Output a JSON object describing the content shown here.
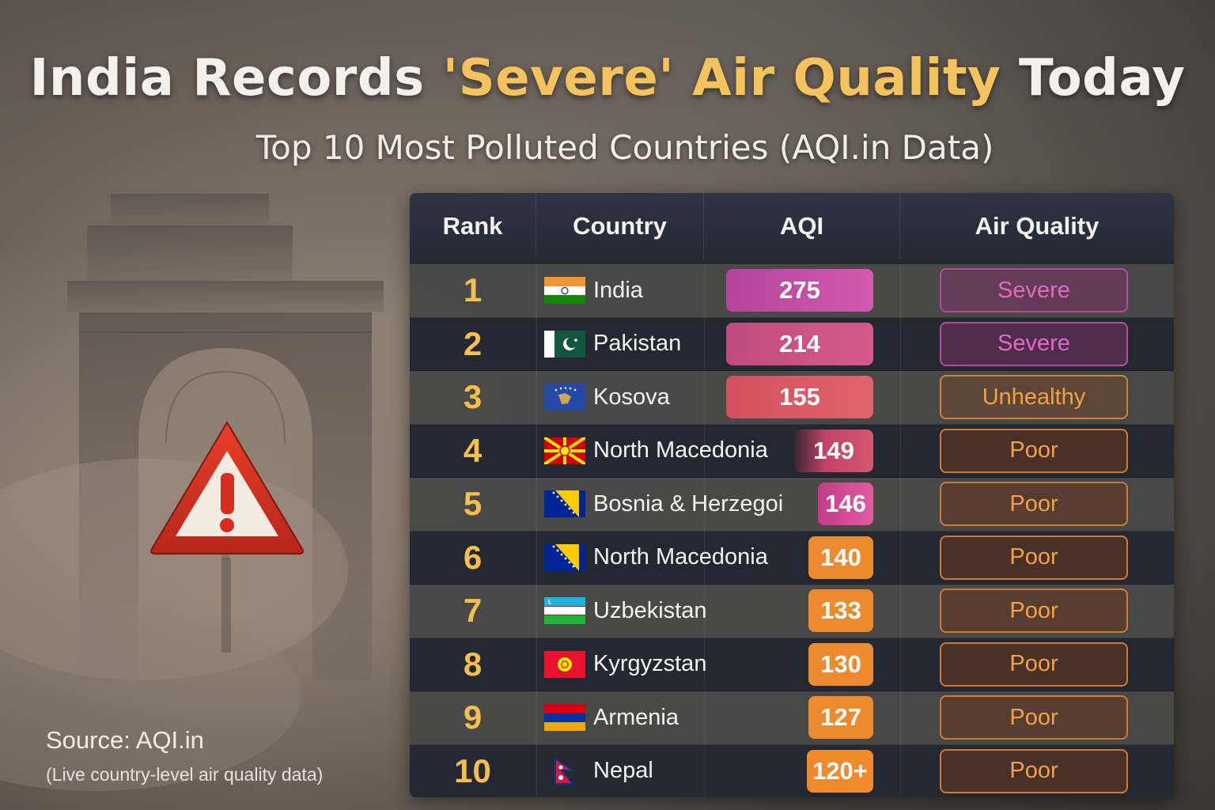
{
  "title": {
    "part1": "India Records ",
    "highlight": "'Severe' Air Quality",
    "part2": " Today"
  },
  "subtitle": "Top 10 Most Polluted Countries (AQI.in Data)",
  "table": {
    "headers": [
      "Rank",
      "Country",
      "AQI",
      "Air Quality"
    ],
    "rows": [
      {
        "rank": "1",
        "country": "India",
        "flag": "india-flag-icon",
        "aqi": "275",
        "quality": "Severe"
      },
      {
        "rank": "2",
        "country": "Pakistan",
        "flag": "pakistan-flag-icon",
        "aqi": "214",
        "quality": "Severe"
      },
      {
        "rank": "3",
        "country": "Kosova",
        "flag": "kosovo-flag-icon",
        "aqi": "155",
        "quality": "Unhealthy"
      },
      {
        "rank": "4",
        "country": "North Macedonia",
        "flag": "north-macedonia-flag-icon",
        "aqi": "149",
        "quality": "Poor"
      },
      {
        "rank": "5",
        "country": "Bosnia & Herzegoi",
        "flag": "bosnia-flag-icon",
        "aqi": "146",
        "quality": "Poor"
      },
      {
        "rank": "6",
        "country": "North Macedonia",
        "flag": "bosnia-flag-icon",
        "aqi": "140",
        "quality": "Poor"
      },
      {
        "rank": "7",
        "country": "Uzbekistan",
        "flag": "uzbekistan-flag-icon",
        "aqi": "133",
        "quality": "Poor"
      },
      {
        "rank": "8",
        "country": "Kyrgyzstan",
        "flag": "kyrgyzstan-flag-icon",
        "aqi": "130",
        "quality": "Poor"
      },
      {
        "rank": "9",
        "country": "Armenia",
        "flag": "armenia-flag-icon",
        "aqi": "127",
        "quality": "Poor"
      },
      {
        "rank": "10",
        "country": "Nepal",
        "flag": "nepal-flag-icon",
        "aqi": "120+",
        "quality": "Poor"
      }
    ]
  },
  "source": {
    "line1": "Source: AQI.in",
    "line2": "(Live country-level air quality data)"
  },
  "icons": {
    "warning": "warning-triangle-icon",
    "background": "india-gate-silhouette"
  },
  "colors": {
    "highlight": "#f5c35e",
    "rank": "#f5bf4d",
    "severe": "#e26ac0",
    "unhealthy": "#f0a24a",
    "poor": "#f2a04c",
    "aqi_severe_high": "#c0479f",
    "aqi_severe": "#d04a82",
    "aqi_unhealthy": "#d9546c",
    "aqi_poor": "#ee8a2e"
  }
}
